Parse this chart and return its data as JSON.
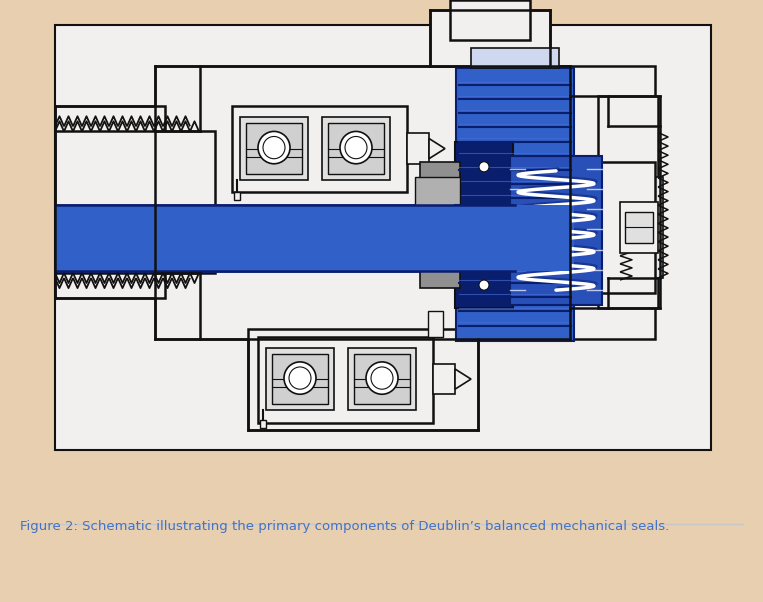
{
  "background_color": "#e8cfb0",
  "fig_width": 7.63,
  "fig_height": 6.02,
  "caption": "Figure 2: Schematic illustrating the primary components of Deublin’s balanced mechanical seals.",
  "caption_color": "#4472c4",
  "caption_fontsize": 9.5,
  "white_bg": "#ffffff",
  "blue_main": "#3060c8",
  "blue_dark": "#0a1e6e",
  "blue_medium": "#2850b8",
  "gray_dark": "#606060",
  "gray_medium": "#909090",
  "gray_light": "#c8c8c8",
  "outline_color": "#111111",
  "white": "#ffffff",
  "beige_bg": "#e8cfb0",
  "schematic_bg": "#f2f0ee"
}
